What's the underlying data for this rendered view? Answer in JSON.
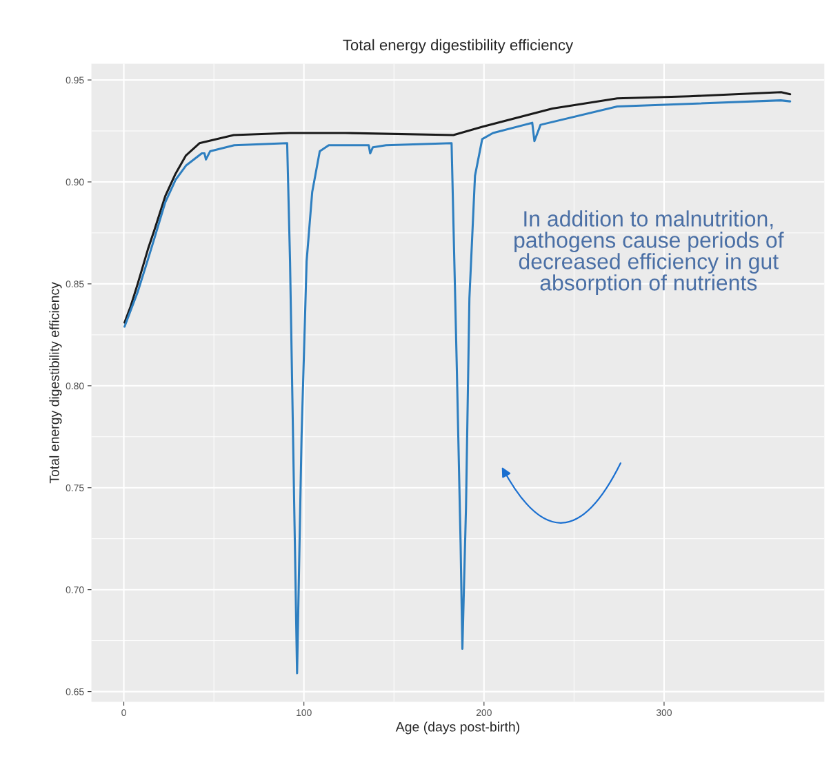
{
  "chart_data": {
    "type": "line",
    "title": "Total energy digestibility efficiency",
    "xlabel": "Age (days post-birth)",
    "ylabel": "Total energy digestibility efficiency",
    "xlim": [
      -18,
      389
    ],
    "ylim": [
      0.645,
      0.958
    ],
    "xticks": [
      0,
      100,
      200,
      300
    ],
    "yticks": [
      {
        "value": 0.65,
        "label": "0.65"
      },
      {
        "value": 0.7,
        "label": "0.70"
      },
      {
        "value": 0.75,
        "label": "0.75"
      },
      {
        "value": 0.8,
        "label": "0.80"
      },
      {
        "value": 0.85,
        "label": "0.85"
      },
      {
        "value": 0.9,
        "label": "0.90"
      },
      {
        "value": 0.95,
        "label": "0.95"
      }
    ],
    "grid": true,
    "series": [
      {
        "color": "#1a1a1a",
        "x": [
          0.4,
          3.8,
          7.7,
          13.4,
          17.2,
          23,
          28.7,
          34.5,
          42,
          61,
          92,
          123,
          183,
          199,
          238,
          274,
          314,
          365,
          370
        ],
        "values": [
          0.831,
          0.839,
          0.85,
          0.867,
          0.877,
          0.893,
          0.904,
          0.913,
          0.919,
          0.923,
          0.924,
          0.924,
          0.923,
          0.927,
          0.936,
          0.941,
          0.942,
          0.944,
          0.943
        ]
      },
      {
        "color": "#2e7fc0",
        "x": [
          0.4,
          3.8,
          7.7,
          13.4,
          17.2,
          23,
          28.7,
          34.5,
          43.3,
          44.8,
          45.6,
          47.9,
          61.3,
          90.7,
          92.3,
          94.3,
          96.2,
          98.7,
          101.5,
          104.6,
          108.8,
          113.8,
          136,
          136.8,
          138.3,
          145.6,
          182,
          184.9,
          187,
          188,
          190,
          191.9,
          195,
          199,
          205,
          226.8,
          228,
          231.4,
          274,
          364.8,
          370
        ],
        "values": [
          0.829,
          0.837,
          0.846,
          0.862,
          0.873,
          0.89,
          0.901,
          0.908,
          0.914,
          0.914,
          0.911,
          0.915,
          0.918,
          0.919,
          0.861,
          0.758,
          0.659,
          0.775,
          0.861,
          0.895,
          0.915,
          0.918,
          0.918,
          0.914,
          0.917,
          0.918,
          0.919,
          0.809,
          0.723,
          0.671,
          0.74,
          0.843,
          0.903,
          0.921,
          0.924,
          0.929,
          0.92,
          0.928,
          0.937,
          0.94,
          0.9395
        ]
      }
    ],
    "annotations": [
      "In addition to malnutrition, pathogens cause periods of decreased efficiency in gut absorption of nutrients"
    ]
  }
}
